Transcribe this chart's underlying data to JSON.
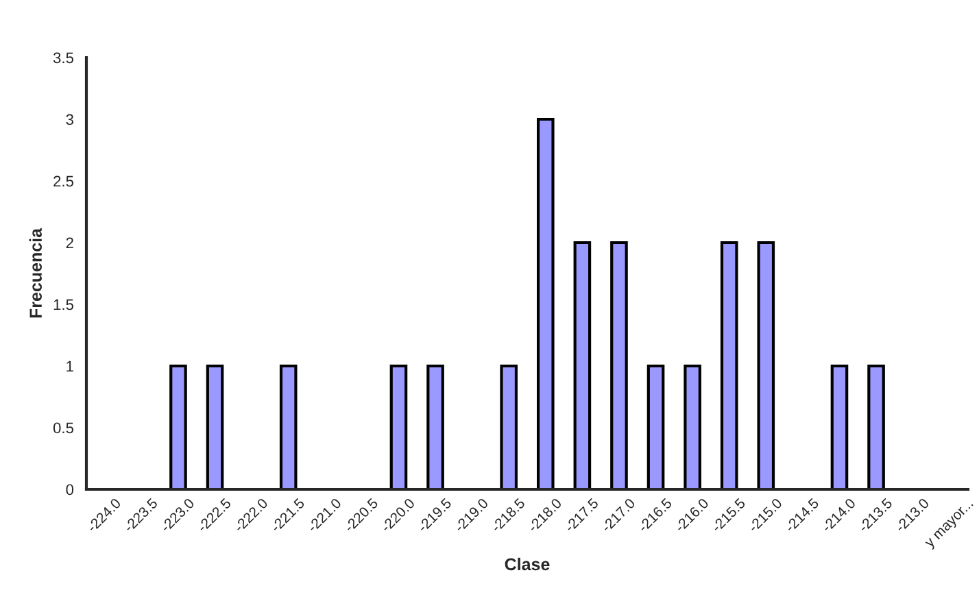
{
  "chart_data": {
    "type": "bar",
    "xlabel": "Clase",
    "ylabel": "Frecuencia",
    "categories": [
      "-224.0",
      "-223.5",
      "-223.0",
      "-222.5",
      "-222.0",
      "-221.5",
      "-221.0",
      "-220.5",
      "-220.0",
      "-219.5",
      "-219.0",
      "-218.5",
      "-218.0",
      "-217.5",
      "-217.0",
      "-216.5",
      "-216.0",
      "-215.5",
      "-215.0",
      "-214.5",
      "-214.0",
      "-213.5",
      "-213.0",
      "y mayor..."
    ],
    "values": [
      0,
      0,
      1,
      1,
      0,
      1,
      0,
      0,
      1,
      1,
      0,
      1,
      3,
      2,
      2,
      1,
      1,
      2,
      2,
      0,
      1,
      1,
      0,
      0
    ],
    "color": "#9999ff",
    "ylim": [
      0,
      3.5
    ],
    "yticks": [
      0,
      0.5,
      1,
      1.5,
      2,
      2.5,
      3,
      3.5
    ],
    "grid": false,
    "legend": false
  }
}
